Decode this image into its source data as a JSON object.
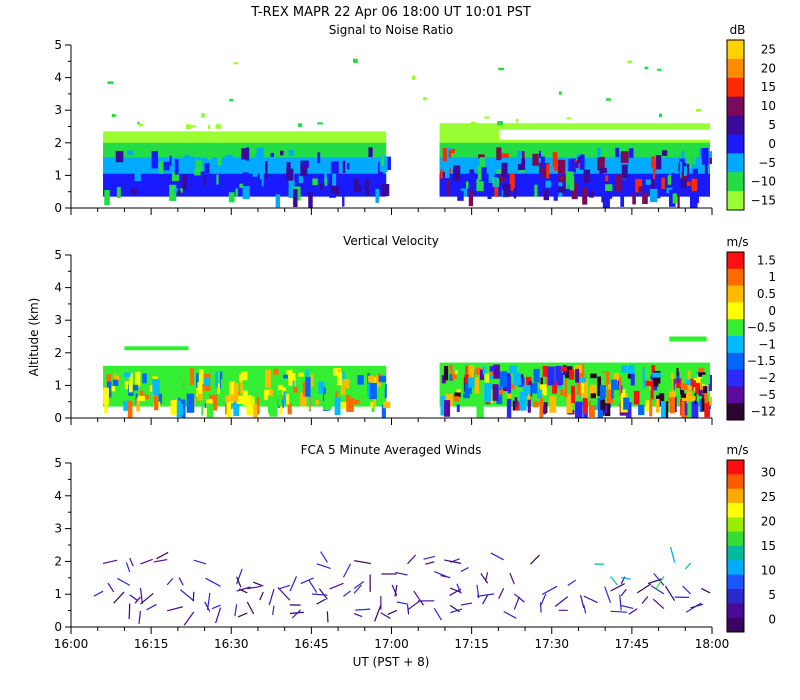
{
  "figure": {
    "main_title": "T-REX   MAPR 22 Apr 06   18:00 UT   10:01   PST",
    "y_axis_label": "Altitude (km)",
    "x_axis_label": "UT  (PST + 8)"
  },
  "chart_data": [
    {
      "type": "heatmap",
      "title": "Signal to Noise Ratio",
      "colorbar_unit": "dB",
      "colorbar_ticks": [
        "25",
        "20",
        "15",
        "10",
        "5",
        "0",
        "−5",
        "−10",
        "−15"
      ],
      "colorbar_colors": [
        "#ffd200",
        "#ff8c00",
        "#ff2a00",
        "#7a0a5a",
        "#3a0a9a",
        "#1a1aff",
        "#00aaff",
        "#22dd44",
        "#99ff33"
      ],
      "xlim": [
        "16:00",
        "18:00"
      ],
      "ylim": [
        0,
        5
      ],
      "ylabel": "Altitude (km)",
      "y_ticks": [
        "0",
        "1",
        "2",
        "3",
        "4",
        "5"
      ],
      "data_gap_ut": [
        "16:59",
        "17:09"
      ]
    },
    {
      "type": "heatmap",
      "title": "Vertical Velocity",
      "colorbar_unit": "m/s",
      "colorbar_ticks": [
        "1.5",
        "1",
        "0.5",
        "0",
        "−0.5",
        "−1",
        "−1.5",
        "−2",
        "−5",
        "−12"
      ],
      "colorbar_colors": [
        "#ff1010",
        "#ff6a00",
        "#ffbb00",
        "#ffff00",
        "#33ee33",
        "#00bbff",
        "#0066ff",
        "#2a2aff",
        "#5a0aa0",
        "#2a0530"
      ],
      "xlim": [
        "16:00",
        "18:00"
      ],
      "ylim": [
        0,
        5
      ],
      "ylabel": "Altitude (km)",
      "y_ticks": [
        "0",
        "1",
        "2",
        "3",
        "4",
        "5"
      ],
      "data_gap_ut": [
        "16:59",
        "17:09"
      ]
    },
    {
      "type": "scatter",
      "title": "FCA 5 Minute Averaged Winds",
      "colorbar_unit": "m/s",
      "colorbar_ticks": [
        "30",
        "25",
        "20",
        "15",
        "10",
        "5",
        "0"
      ],
      "colorbar_colors": [
        "#ff1010",
        "#ff5a00",
        "#ffaa00",
        "#ffff00",
        "#99ee00",
        "#33dd33",
        "#00bb99",
        "#00aaff",
        "#1a55ff",
        "#2a2acc",
        "#4a0a99",
        "#3a0560"
      ],
      "xlim": [
        "16:00",
        "18:00"
      ],
      "ylim": [
        0,
        5
      ],
      "ylabel": "Altitude (km)",
      "y_ticks": [
        "0",
        "1",
        "2",
        "3",
        "4",
        "5"
      ],
      "x_ticks": [
        "16:00",
        "16:15",
        "16:30",
        "16:45",
        "17:00",
        "17:15",
        "17:30",
        "17:45",
        "18:00"
      ],
      "xlabel": "UT  (PST + 8)",
      "wind_heights_km": [
        0.5,
        0.75,
        1.0,
        1.25,
        1.6,
        2.0
      ]
    }
  ]
}
